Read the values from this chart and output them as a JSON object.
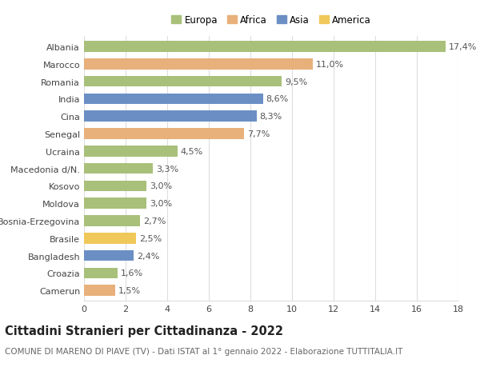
{
  "categories": [
    "Albania",
    "Marocco",
    "Romania",
    "India",
    "Cina",
    "Senegal",
    "Ucraina",
    "Macedonia d/N.",
    "Kosovo",
    "Moldova",
    "Bosnia-Erzegovina",
    "Brasile",
    "Bangladesh",
    "Croazia",
    "Camerun"
  ],
  "values": [
    17.4,
    11.0,
    9.5,
    8.6,
    8.3,
    7.7,
    4.5,
    3.3,
    3.0,
    3.0,
    2.7,
    2.5,
    2.4,
    1.6,
    1.5
  ],
  "labels": [
    "17,4%",
    "11,0%",
    "9,5%",
    "8,6%",
    "8,3%",
    "7,7%",
    "4,5%",
    "3,3%",
    "3,0%",
    "3,0%",
    "2,7%",
    "2,5%",
    "2,4%",
    "1,6%",
    "1,5%"
  ],
  "continents": [
    "Europa",
    "Africa",
    "Europa",
    "Asia",
    "Asia",
    "Africa",
    "Europa",
    "Europa",
    "Europa",
    "Europa",
    "Europa",
    "America",
    "Asia",
    "Europa",
    "Africa"
  ],
  "colors": {
    "Europa": "#a8c07a",
    "Africa": "#e8b07a",
    "Asia": "#6b8fc4",
    "America": "#f0c85a"
  },
  "legend_order": [
    "Europa",
    "Africa",
    "Asia",
    "America"
  ],
  "xlim": [
    0,
    18
  ],
  "xticks": [
    0,
    2,
    4,
    6,
    8,
    10,
    12,
    14,
    16,
    18
  ],
  "title": "Cittadini Stranieri per Cittadinanza - 2022",
  "subtitle": "COMUNE DI MARENO DI PIAVE (TV) - Dati ISTAT al 1° gennaio 2022 - Elaborazione TUTTITALIA.IT",
  "title_fontsize": 10.5,
  "subtitle_fontsize": 7.5,
  "label_fontsize": 8,
  "tick_fontsize": 8,
  "legend_fontsize": 8.5,
  "bar_height": 0.62,
  "background_color": "#ffffff",
  "grid_color": "#dddddd"
}
